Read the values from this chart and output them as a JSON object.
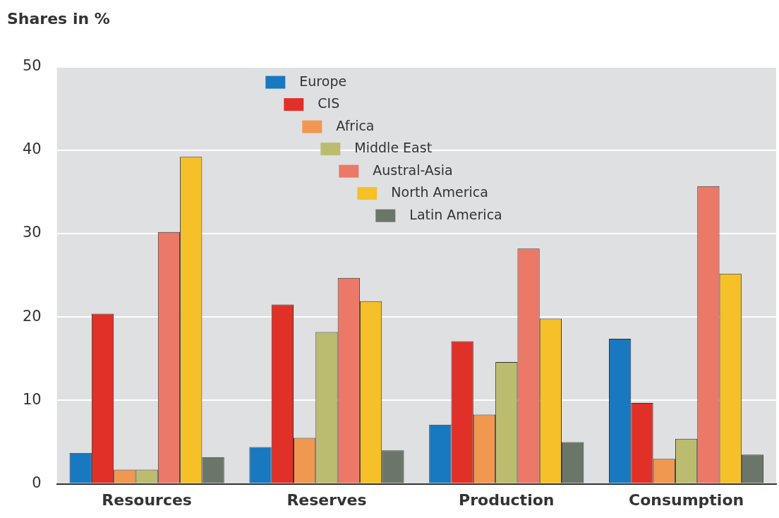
{
  "chart_data": {
    "type": "bar",
    "ylabel": "Shares in %",
    "categories": [
      "Resources",
      "Reserves",
      "Production",
      "Consumption"
    ],
    "series": [
      {
        "name": "Europe",
        "color": "#1878c0",
        "values": [
          3.7,
          4.4,
          7.1,
          17.4
        ]
      },
      {
        "name": "CIS",
        "color": "#e03028",
        "values": [
          20.4,
          21.5,
          17.1,
          9.7
        ]
      },
      {
        "name": "Africa",
        "color": "#f09850",
        "values": [
          1.7,
          5.5,
          8.3,
          3.0
        ]
      },
      {
        "name": "Middle East",
        "color": "#bcbc70",
        "values": [
          1.7,
          18.2,
          14.6,
          5.4
        ]
      },
      {
        "name": "Austral-Asia",
        "color": "#ec7868",
        "values": [
          30.2,
          24.7,
          28.2,
          35.7
        ]
      },
      {
        "name": "North America",
        "color": "#f5c028",
        "values": [
          39.2,
          21.9,
          19.8,
          25.2
        ]
      },
      {
        "name": "Latin America",
        "color": "#6a7668",
        "values": [
          3.2,
          4.0,
          5.0,
          3.5
        ]
      }
    ],
    "ylim": [
      0,
      50
    ],
    "yticks": [
      0,
      10,
      20,
      30,
      40,
      50
    ],
    "grid": "y",
    "legend": "top"
  }
}
